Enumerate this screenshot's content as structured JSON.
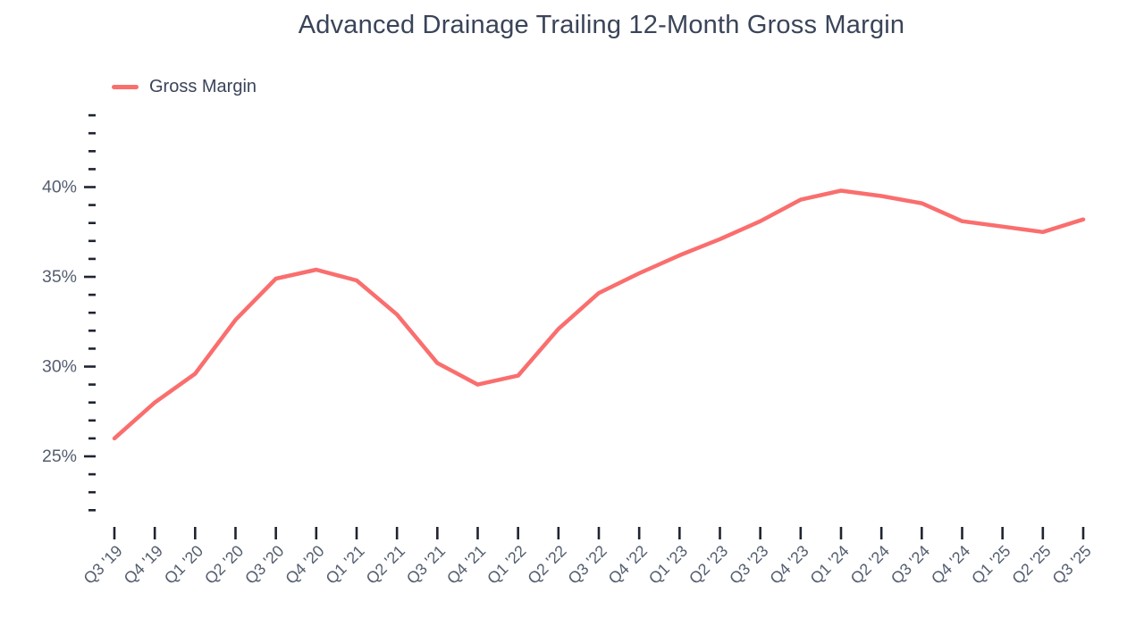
{
  "chart_data": {
    "type": "line",
    "title": "Advanced Drainage Trailing 12-Month Gross Margin",
    "xlabel": "",
    "ylabel": "",
    "categories": [
      "Q3 '19",
      "Q4 '19",
      "Q1 '20",
      "Q2 '20",
      "Q3 '20",
      "Q4 '20",
      "Q1 '21",
      "Q2 '21",
      "Q3 '21",
      "Q4 '21",
      "Q1 '22",
      "Q2 '22",
      "Q3 '22",
      "Q4 '22",
      "Q1 '23",
      "Q2 '23",
      "Q3 '23",
      "Q4 '23",
      "Q1 '24",
      "Q2 '24",
      "Q3 '24",
      "Q4 '24",
      "Q1 '25",
      "Q2 '25",
      "Q3 '25"
    ],
    "series": [
      {
        "name": "Gross Margin",
        "color": "#FA6E6E",
        "values": [
          26.0,
          28.0,
          29.6,
          32.6,
          34.9,
          35.4,
          34.8,
          32.9,
          30.2,
          29.0,
          29.5,
          32.1,
          34.1,
          35.2,
          36.2,
          37.1,
          38.1,
          39.3,
          39.8,
          39.5,
          39.1,
          38.1,
          37.8,
          37.5,
          38.2
        ]
      }
    ],
    "ylim": [
      22,
      44
    ],
    "y_minor_step": 1,
    "y_major_ticks": [
      25,
      30,
      35,
      40
    ],
    "y_tick_suffix": "%",
    "grid": false,
    "legend_position": "top-left"
  },
  "colors": {
    "background": "#FFFFFF",
    "title": "#3A4459",
    "axis_label": "#545E70",
    "tick_mark": "#1F2430",
    "line": "#FA6E6E"
  }
}
